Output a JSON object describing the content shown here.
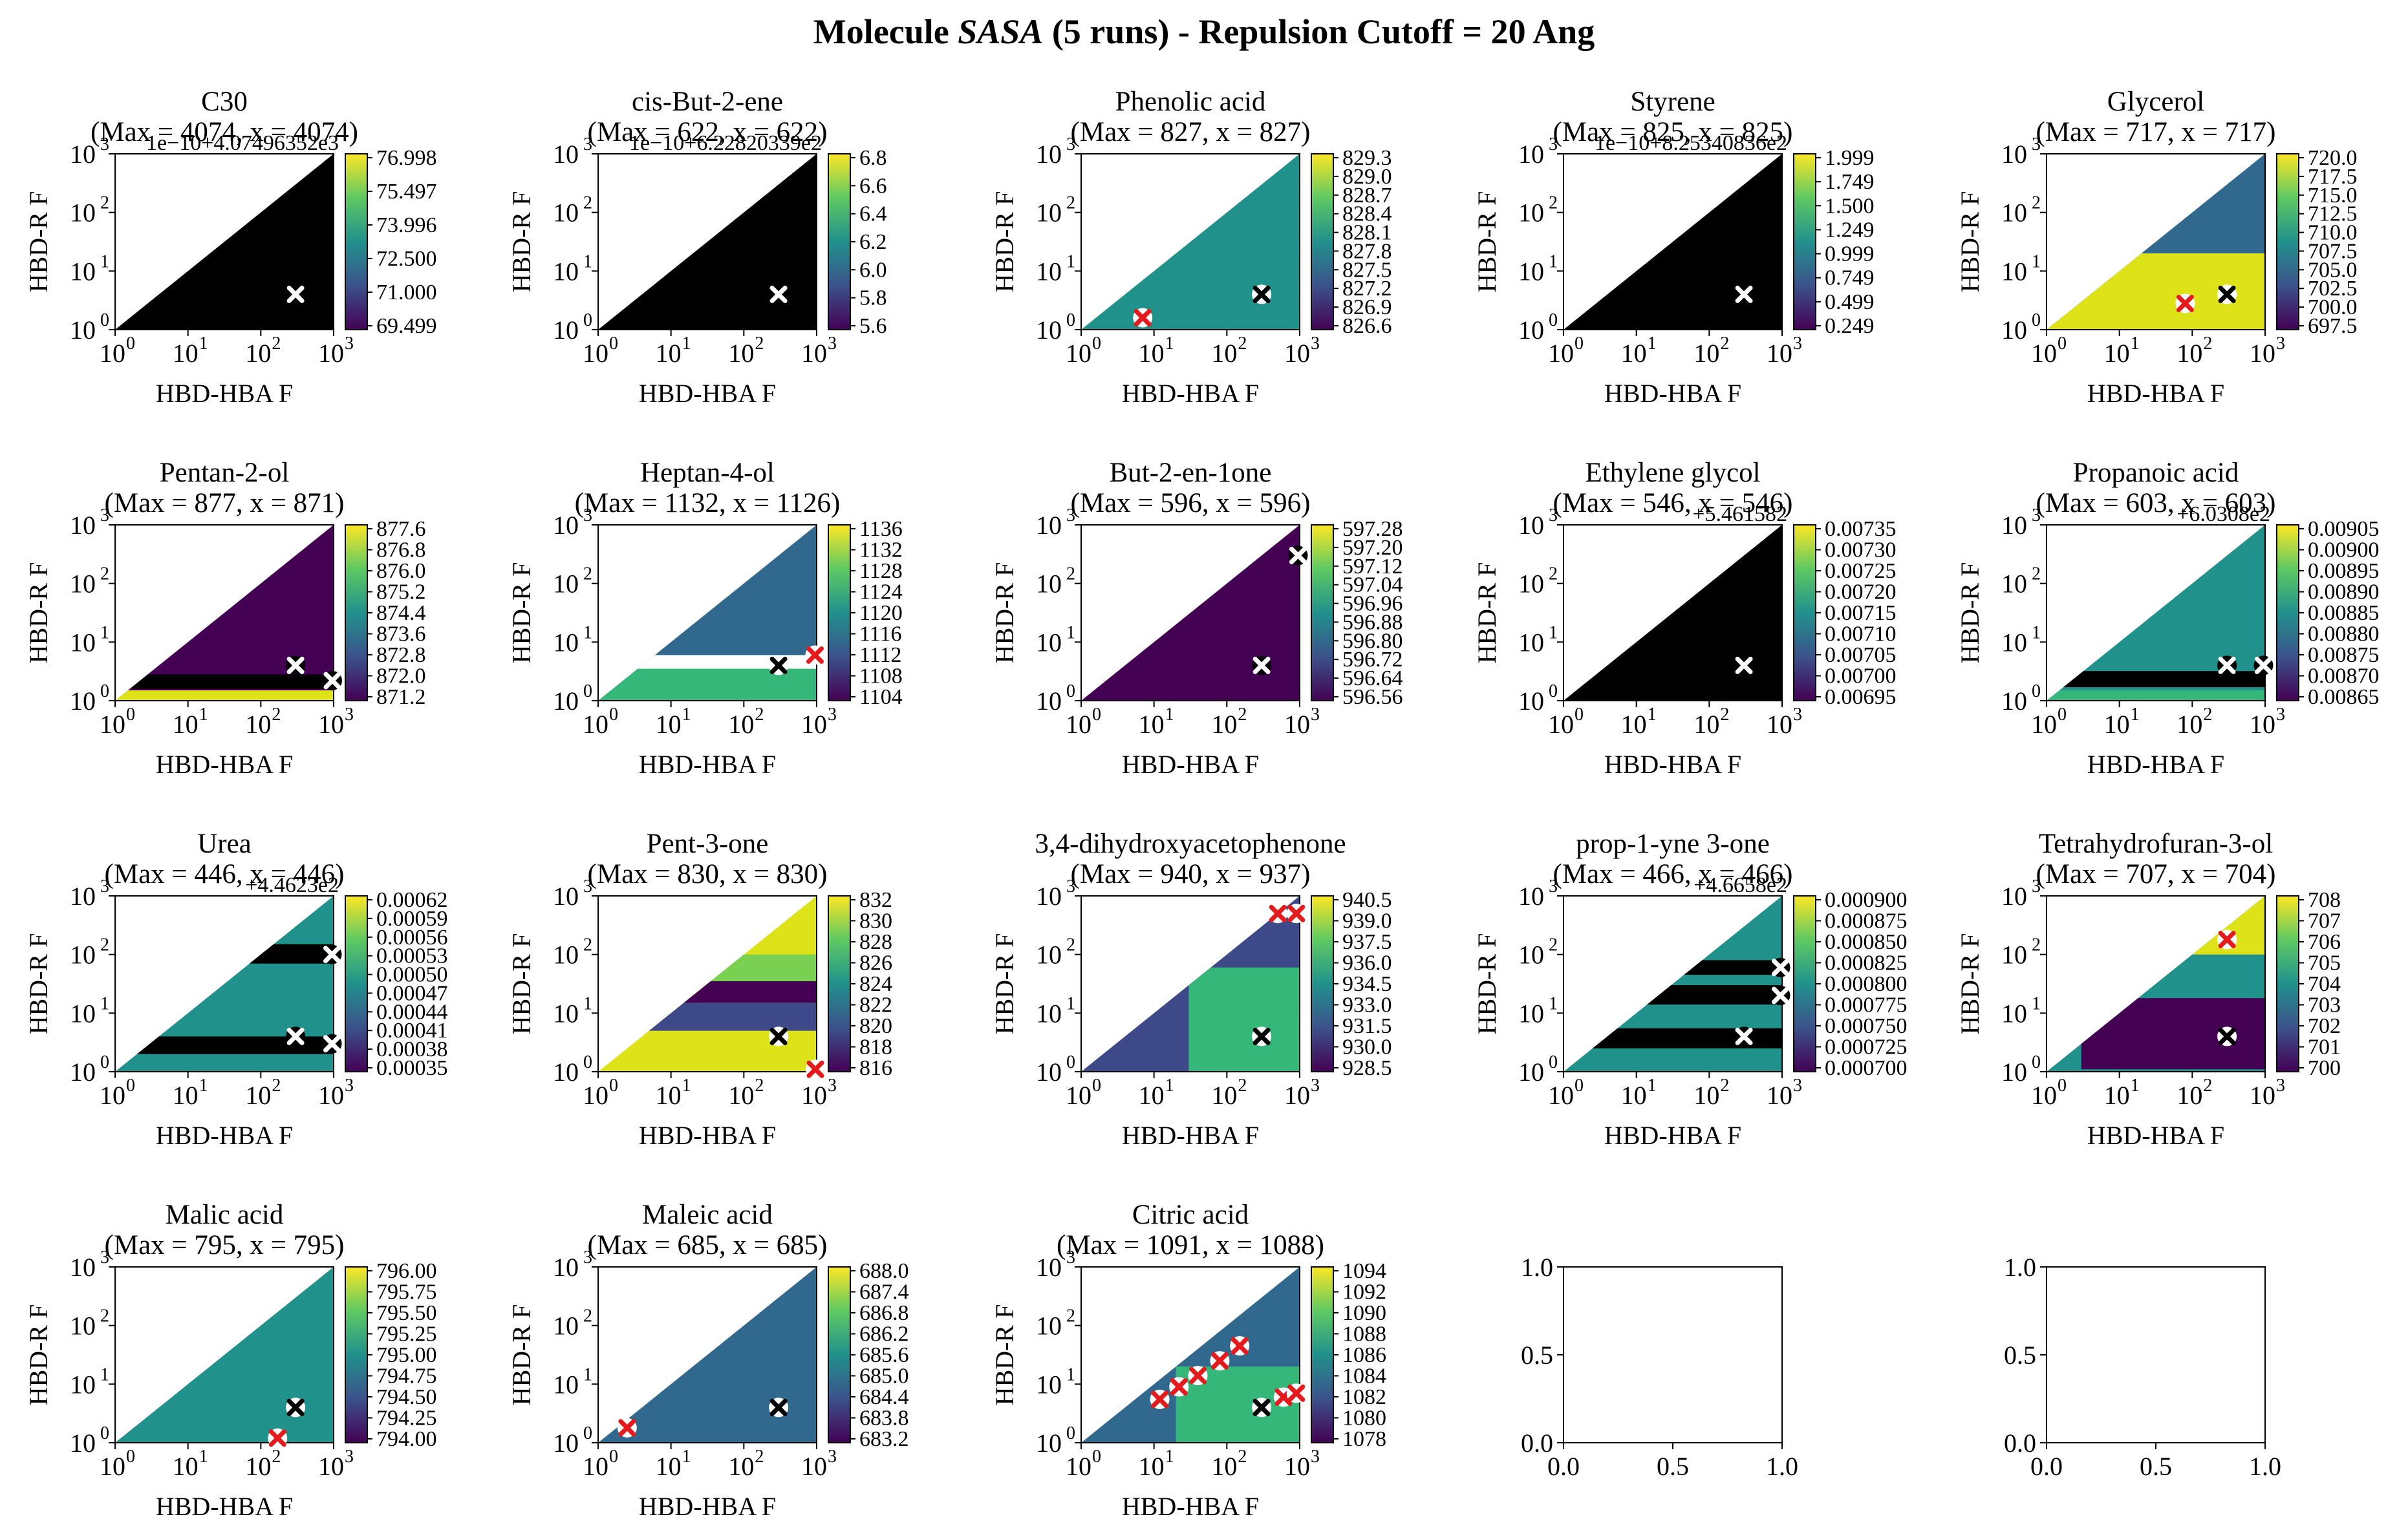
{
  "figure": {
    "suptitle": "Molecule $SASA$ (5 runs) - Repulsion Cutoff = 20 Ang",
    "xlabel": "HBD-HBA $F_{rel}$",
    "ylabel": "HBD-R $F_{rel}$",
    "log_ticks": [
      "10",
      "10",
      "10",
      "10"
    ],
    "log_exps": [
      "0",
      "1",
      "2",
      "3"
    ]
  },
  "chart_data": [
    {
      "type": "heatmap",
      "title": "C30",
      "subtitle": "(Max = 4074, x = 4074)",
      "offset_text": "1e−10+4.07496352e3",
      "colorbar_ticks": [
        "76.998",
        "75.497",
        "73.996",
        "72.500",
        "71.000",
        "69.499"
      ],
      "region_color": "#000000",
      "bands": [],
      "markers": [
        {
          "x": 300,
          "y": 4,
          "color": "white"
        }
      ]
    },
    {
      "type": "heatmap",
      "title": "cis-But-2-ene",
      "subtitle": "(Max = 622, x = 622)",
      "offset_text": "1e−10+6.22820339e2",
      "colorbar_ticks": [
        "6.8",
        "6.6",
        "6.4",
        "6.2",
        "6.0",
        "5.8",
        "5.6"
      ],
      "region_color": "#000000",
      "bands": [],
      "markers": [
        {
          "x": 300,
          "y": 4,
          "color": "white"
        }
      ]
    },
    {
      "type": "heatmap",
      "title": "Phenolic acid",
      "subtitle": "(Max = 827, x = 827)",
      "offset_text": "",
      "colorbar_ticks": [
        "829.3",
        "829.0",
        "828.7",
        "828.4",
        "828.1",
        "827.8",
        "827.5",
        "827.2",
        "826.9",
        "826.6"
      ],
      "region_color": "#21918c",
      "bands": [],
      "markers": [
        {
          "x": 7,
          "y": 1.6,
          "color": "red"
        },
        {
          "x": 300,
          "y": 4,
          "color": "black"
        }
      ]
    },
    {
      "type": "heatmap",
      "title": "Styrene",
      "subtitle": "(Max = 825, x = 825)",
      "offset_text": "1e−10+8.25340836e2",
      "colorbar_ticks": [
        "1.999",
        "1.749",
        "1.500",
        "1.249",
        "0.999",
        "0.749",
        "0.499",
        "0.249"
      ],
      "region_color": "#000000",
      "bands": [],
      "markers": [
        {
          "x": 300,
          "y": 4,
          "color": "white"
        }
      ]
    },
    {
      "type": "heatmap",
      "title": "Glycerol",
      "subtitle": "(Max = 717, x = 717)",
      "offset_text": "",
      "colorbar_ticks": [
        "720.0",
        "717.5",
        "715.0",
        "712.5",
        "710.0",
        "707.5",
        "705.0",
        "702.5",
        "700.0",
        "697.5"
      ],
      "region_color": "#31688e",
      "bands": [
        {
          "y0": 1,
          "y1": 20,
          "color": "#dde318"
        }
      ],
      "markers": [
        {
          "x": 80,
          "y": 2.8,
          "color": "red"
        },
        {
          "x": 300,
          "y": 4,
          "color": "black"
        }
      ]
    },
    {
      "type": "heatmap",
      "title": "Pentan-2-ol",
      "subtitle": "(Max = 877, x = 871)",
      "offset_text": "",
      "colorbar_ticks": [
        "877.6",
        "876.8",
        "876.0",
        "875.2",
        "874.4",
        "873.6",
        "872.8",
        "872.0",
        "871.2"
      ],
      "region_color": "#440154",
      "bands": [
        {
          "y0": 1,
          "y1": 1.5,
          "color": "#dde318"
        },
        {
          "y0": 1.6,
          "y1": 2.8,
          "color": "#000000"
        }
      ],
      "markers": [
        {
          "x": 300,
          "y": 4,
          "color": "white"
        },
        {
          "x": 1000,
          "y": 2.2,
          "color": "white"
        }
      ]
    },
    {
      "type": "heatmap",
      "title": "Heptan-4-ol",
      "subtitle": "(Max = 1132, x = 1126)",
      "offset_text": "",
      "colorbar_ticks": [
        "1136",
        "1132",
        "1128",
        "1124",
        "1120",
        "1116",
        "1112",
        "1108",
        "1104"
      ],
      "region_color": "#31688e",
      "bands": [
        {
          "y0": 1,
          "y1": 3.5,
          "color": "#35b779"
        },
        {
          "y0": 3.5,
          "y1": 6,
          "color": "#ffffff"
        }
      ],
      "markers": [
        {
          "x": 300,
          "y": 4,
          "color": "black"
        },
        {
          "x": 950,
          "y": 6,
          "color": "red"
        }
      ]
    },
    {
      "type": "heatmap",
      "title": "But-2-en-1one",
      "subtitle": "(Max = 596, x = 596)",
      "offset_text": "",
      "colorbar_ticks": [
        "597.28",
        "597.20",
        "597.12",
        "597.04",
        "596.96",
        "596.88",
        "596.80",
        "596.72",
        "596.64",
        "596.56"
      ],
      "region_color": "#440154",
      "bands": [],
      "markers": [
        {
          "x": 300,
          "y": 4,
          "color": "white"
        },
        {
          "x": 950,
          "y": 300,
          "color": "white"
        }
      ]
    },
    {
      "type": "heatmap",
      "title": "Ethylene glycol",
      "subtitle": "(Max = 546, x = 546)",
      "offset_text": "+5.461582",
      "colorbar_ticks": [
        "0.00735",
        "0.00730",
        "0.00725",
        "0.00720",
        "0.00715",
        "0.00710",
        "0.00705",
        "0.00700",
        "0.00695"
      ],
      "region_color": "#000000",
      "bands": [],
      "markers": [
        {
          "x": 300,
          "y": 4,
          "color": "white"
        }
      ]
    },
    {
      "type": "heatmap",
      "title": "Propanoic acid",
      "subtitle": "(Max = 603, x = 603)",
      "offset_text": "+6.0308e2",
      "colorbar_ticks": [
        "0.00905",
        "0.00900",
        "0.00895",
        "0.00890",
        "0.00885",
        "0.00880",
        "0.00875",
        "0.00870",
        "0.00865"
      ],
      "region_color": "#21918c",
      "bands": [
        {
          "y0": 1,
          "y1": 1.5,
          "color": "#35b779"
        },
        {
          "y0": 1.7,
          "y1": 3.2,
          "color": "#000000"
        }
      ],
      "markers": [
        {
          "x": 300,
          "y": 4,
          "color": "white"
        },
        {
          "x": 950,
          "y": 4,
          "color": "white"
        }
      ]
    },
    {
      "type": "heatmap",
      "title": "Urea",
      "subtitle": "(Max = 446, x = 446)",
      "offset_text": "+4.4623e2",
      "colorbar_ticks": [
        "0.00062",
        "0.00059",
        "0.00056",
        "0.00053",
        "0.00050",
        "0.00047",
        "0.00044",
        "0.00041",
        "0.00038",
        "0.00035"
      ],
      "region_color": "#21918c",
      "bands": [
        {
          "y0": 2,
          "y1": 4,
          "color": "#000000"
        },
        {
          "y0": 70,
          "y1": 150,
          "color": "#000000"
        }
      ],
      "markers": [
        {
          "x": 300,
          "y": 4,
          "color": "white"
        },
        {
          "x": 950,
          "y": 100,
          "color": "white"
        },
        {
          "x": 950,
          "y": 3,
          "color": "white"
        }
      ]
    },
    {
      "type": "heatmap",
      "title": "Pent-3-one",
      "subtitle": "(Max = 830, x = 830)",
      "offset_text": "",
      "colorbar_ticks": [
        "832",
        "830",
        "828",
        "826",
        "824",
        "822",
        "820",
        "818",
        "816"
      ],
      "region_color": "#dde318",
      "bands": [
        {
          "y0": 15,
          "y1": 35,
          "color": "#440154"
        },
        {
          "y0": 35,
          "y1": 100,
          "color": "#7ad151"
        },
        {
          "y0": 5,
          "y1": 15,
          "color": "#3e4989"
        }
      ],
      "markers": [
        {
          "x": 300,
          "y": 4,
          "color": "black"
        },
        {
          "x": 1000,
          "y": 1.1,
          "color": "red"
        }
      ]
    },
    {
      "type": "heatmap",
      "title": "3,4-dihydroxyacetophenone",
      "subtitle": "(Max = 940, x = 937)",
      "offset_text": "",
      "colorbar_ticks": [
        "940.5",
        "939.0",
        "937.5",
        "936.0",
        "934.5",
        "933.0",
        "931.5",
        "930.0",
        "928.5"
      ],
      "region_color": "#3e4989",
      "bands": [
        {
          "y0": 1,
          "y1": 60,
          "color": "#35b779",
          "x0": 30
        }
      ],
      "markers": [
        {
          "x": 300,
          "y": 4,
          "color": "black"
        },
        {
          "x": 500,
          "y": 500,
          "color": "red"
        },
        {
          "x": 900,
          "y": 500,
          "color": "red"
        }
      ]
    },
    {
      "type": "heatmap",
      "title": "prop-1-yne 3-one",
      "subtitle": "(Max = 466, x = 466)",
      "offset_text": "+4.6658e2",
      "colorbar_ticks": [
        "0.000900",
        "0.000875",
        "0.000850",
        "0.000825",
        "0.000800",
        "0.000775",
        "0.000750",
        "0.000725",
        "0.000700"
      ],
      "region_color": "#21918c",
      "bands": [
        {
          "y0": 2.5,
          "y1": 5.5,
          "color": "#000000"
        },
        {
          "y0": 14,
          "y1": 30,
          "color": "#000000"
        },
        {
          "y0": 45,
          "y1": 80,
          "color": "#000000"
        }
      ],
      "markers": [
        {
          "x": 300,
          "y": 4,
          "color": "white"
        },
        {
          "x": 950,
          "y": 60,
          "color": "white"
        },
        {
          "x": 950,
          "y": 20,
          "color": "white"
        }
      ]
    },
    {
      "type": "heatmap",
      "title": "Tetrahydrofuran-3-ol",
      "subtitle": "(Max = 707, x = 704)",
      "offset_text": "",
      "colorbar_ticks": [
        "708",
        "707",
        "706",
        "705",
        "704",
        "703",
        "702",
        "701",
        "700"
      ],
      "region_color": "#21918c",
      "bands": [
        {
          "y0": 1.1,
          "y1": 18,
          "color": "#440154",
          "x0": 3
        },
        {
          "y0": 100,
          "y1": 1000,
          "color": "#dde318",
          "x0": 100
        }
      ],
      "markers": [
        {
          "x": 300,
          "y": 4,
          "color": "black"
        },
        {
          "x": 300,
          "y": 180,
          "color": "red"
        }
      ]
    },
    {
      "type": "heatmap",
      "title": "Malic acid",
      "subtitle": "(Max = 795, x = 795)",
      "offset_text": "",
      "colorbar_ticks": [
        "796.00",
        "795.75",
        "795.50",
        "795.25",
        "795.00",
        "794.75",
        "794.50",
        "794.25",
        "794.00"
      ],
      "region_color": "#21918c",
      "bands": [],
      "markers": [
        {
          "x": 170,
          "y": 1.2,
          "color": "red"
        },
        {
          "x": 300,
          "y": 4,
          "color": "black"
        }
      ]
    },
    {
      "type": "heatmap",
      "title": "Maleic acid",
      "subtitle": "(Max = 685, x = 685)",
      "offset_text": "",
      "colorbar_ticks": [
        "688.0",
        "687.4",
        "686.8",
        "686.2",
        "685.6",
        "685.0",
        "684.4",
        "683.8",
        "683.2"
      ],
      "region_color": "#31688e",
      "bands": [],
      "markers": [
        {
          "x": 2.5,
          "y": 1.8,
          "color": "red"
        },
        {
          "x": 300,
          "y": 4,
          "color": "black"
        }
      ]
    },
    {
      "type": "heatmap",
      "title": "Citric acid",
      "subtitle": "(Max = 1091, x = 1088)",
      "offset_text": "",
      "colorbar_ticks": [
        "1094",
        "1092",
        "1090",
        "1088",
        "1086",
        "1084",
        "1082",
        "1080",
        "1078"
      ],
      "region_color": "#31688e",
      "bands": [
        {
          "y0": 1,
          "y1": 20,
          "color": "#35b779",
          "x0": 20
        }
      ],
      "markers": [
        {
          "x": 300,
          "y": 4,
          "color": "black"
        },
        {
          "x": 12,
          "y": 5.5,
          "color": "red"
        },
        {
          "x": 22,
          "y": 9,
          "color": "red"
        },
        {
          "x": 40,
          "y": 14,
          "color": "red"
        },
        {
          "x": 80,
          "y": 25,
          "color": "red"
        },
        {
          "x": 150,
          "y": 45,
          "color": "red"
        },
        {
          "x": 600,
          "y": 6,
          "color": "red"
        },
        {
          "x": 900,
          "y": 7,
          "color": "red"
        }
      ]
    },
    {
      "type": "empty",
      "xticks": [
        "0.0",
        "0.5",
        "1.0"
      ],
      "yticks": [
        "0.0",
        "0.5",
        "1.0"
      ]
    },
    {
      "type": "empty",
      "xticks": [
        "0.0",
        "0.5",
        "1.0"
      ],
      "yticks": [
        "0.0",
        "0.5",
        "1.0"
      ]
    }
  ]
}
